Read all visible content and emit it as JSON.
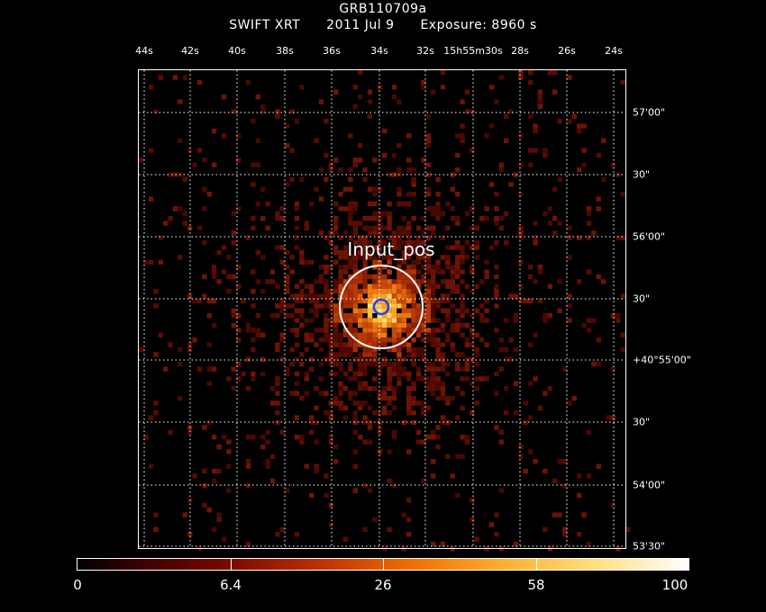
{
  "header": {
    "object": "GRB110709a",
    "instrument": "SWIFT XRT",
    "date": "2011 Jul  9",
    "exposure": "Exposure: 8960 s"
  },
  "ra_ticks": [
    "44s",
    "42s",
    "40s",
    "38s",
    "36s",
    "34s",
    "32s",
    "15h55m30s",
    "28s",
    "26s",
    "24s"
  ],
  "dec_ticks": [
    "57'00\"",
    "30\"",
    "56'00\"",
    "30\"",
    "+40°55'00\"",
    "30\"",
    "54'00\"",
    "53'30\""
  ],
  "source_label": "Input_pos",
  "colorbar": {
    "ticks": [
      "0",
      "6.4",
      "26",
      "58",
      "100"
    ]
  },
  "colors": {
    "background": "#000000",
    "grid": "#ffffff",
    "source_circle": "#ffffff",
    "input_marker": "#1f3fff"
  }
}
